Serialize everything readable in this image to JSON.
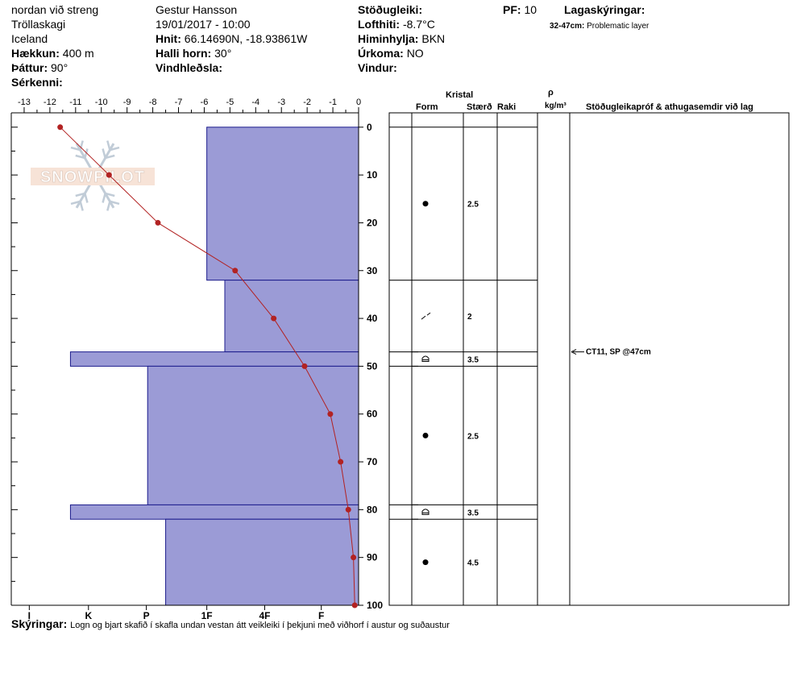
{
  "header": {
    "location_line1": "nordan við streng",
    "location_line2": "Tröllaskagi",
    "location_line3": "Iceland",
    "elevation_label": "Hækkun:",
    "elevation_value": "400 m",
    "aspect_label": "Þáttur:",
    "aspect_value": "90°",
    "features_label": "Sérkenni:",
    "observer": "Gestur Hansson",
    "datetime": "19/01/2017 - 10:00",
    "coords_label": "Hnit:",
    "coords_value": "66.14690N, -18.93861W",
    "slope_label": "Halli horn:",
    "slope_value": "30°",
    "wind_loading_label": "Vindhleðsla:",
    "stability_label": "Stöðugleiki:",
    "air_temp_label": "Lofthiti:",
    "air_temp_value": "-8.7°C",
    "sky_label": "Himinhylja:",
    "sky_value": "BKN",
    "precip_label": "Úrkoma:",
    "precip_value": "NO",
    "wind_label": "Vindur:",
    "pf_label": "PF:",
    "pf_value": "10",
    "layer_notes_label": "Lagaskýringar:",
    "layer_note_range": "32-47cm:",
    "layer_note_text": "Problematic layer"
  },
  "table_header": {
    "crystal": "Kristal",
    "form": "Form",
    "size": "Stærð",
    "wetness": "Raki",
    "rho": "ρ",
    "density_unit": "kg/m³",
    "comments": "Stöðugleikapróf & athugasemdir við lag"
  },
  "watermark": "SNOWPILOT",
  "footer": {
    "label": "Skýringar:",
    "text": "Logn og bjart skafið í skafla undan vestan átt veikleiki í þekjuni með viðhorf í austur og suðaustur"
  },
  "stability_test": {
    "depth_cm": 47,
    "text": "CT11, SP @47cm"
  },
  "chart_data": {
    "type": "line",
    "x_top_ticks": [
      -13,
      -12,
      -11,
      -10,
      -9,
      -8,
      -7,
      -6,
      -5,
      -4,
      -3,
      -2,
      -1,
      0
    ],
    "x_top_labels": [
      "-13",
      "-12",
      "-11",
      "-10",
      "-9",
      "-8",
      "-7",
      "-6",
      "-5",
      "-4",
      "-3",
      "-2",
      "-1",
      "0"
    ],
    "x_top_range": [
      -13.5,
      0
    ],
    "hardness_labels": [
      "I",
      "K",
      "P",
      "1F",
      "4F",
      "F"
    ],
    "hardness_positions": [
      -12.8,
      -10.5,
      -8.25,
      -5.9,
      -3.65,
      -1.45
    ],
    "y_ticks": [
      0,
      10,
      20,
      30,
      40,
      50,
      60,
      70,
      80,
      90,
      100
    ],
    "y_labels": [
      "0",
      "10",
      "20",
      "30",
      "40",
      "50",
      "60",
      "70",
      "80",
      "90",
      "100"
    ],
    "y_range": [
      -3,
      100
    ],
    "temperature_profile": {
      "depth_cm": [
        0,
        10,
        20,
        30,
        40,
        50,
        60,
        70,
        80,
        90,
        100
      ],
      "temp_c": [
        -11.6,
        -9.7,
        -7.8,
        -4.8,
        -3.3,
        -2.1,
        -1.1,
        -0.7,
        -0.4,
        -0.2,
        -0.15
      ],
      "color": "#b22222"
    },
    "hardness_profile": {
      "color_fill": "#9b9bd6",
      "color_stroke": "#1c1c8c",
      "layers": [
        {
          "top": 0,
          "bottom": 32,
          "hardness": "1F",
          "width_value": -5.9
        },
        {
          "top": 32,
          "bottom": 47,
          "hardness": "1F-",
          "width_value": -5.2
        },
        {
          "top": 47,
          "bottom": 50,
          "hardness": "I+",
          "width_value": -11.2
        },
        {
          "top": 50,
          "bottom": 79,
          "hardness": "P",
          "width_value": -8.2
        },
        {
          "top": 79,
          "bottom": 82,
          "hardness": "I+",
          "width_value": -11.2
        },
        {
          "top": 82,
          "bottom": 100,
          "hardness": "P-",
          "width_value": -7.5
        }
      ]
    },
    "layer_boundaries_cm": [
      0,
      32,
      47,
      50,
      79,
      82
    ],
    "layer_rows": [
      {
        "mid": 16,
        "form": "dot",
        "size": "2.5"
      },
      {
        "mid": 39.5,
        "form": "slash",
        "size": "2"
      },
      {
        "mid": 48.5,
        "form": "cup",
        "size": "3.5"
      },
      {
        "mid": 64.5,
        "form": "dot",
        "size": "2.5"
      },
      {
        "mid": 80.5,
        "form": "cup",
        "size": "3.5"
      },
      {
        "mid": 91,
        "form": "dot",
        "size": "4.5"
      }
    ]
  }
}
